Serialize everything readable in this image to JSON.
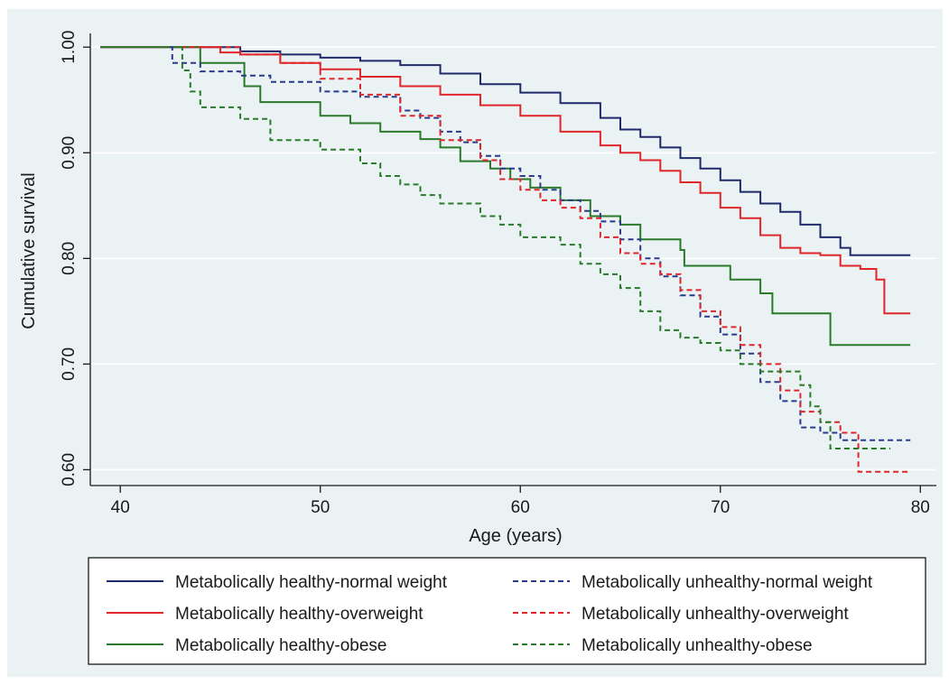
{
  "chart_data": {
    "type": "line",
    "title": "",
    "xlabel": "Age (years)",
    "ylabel": "Cumulative survival",
    "xlim": [
      38.5,
      80.8
    ],
    "ylim": [
      0.585,
      1.013
    ],
    "x_ticks": [
      40,
      50,
      60,
      70,
      80
    ],
    "x_tick_labels": [
      "40",
      "50",
      "60",
      "70",
      "80"
    ],
    "y_ticks": [
      0.6,
      0.7,
      0.8,
      0.9,
      1.0
    ],
    "y_tick_labels": [
      "0.60",
      "0.70",
      "0.80",
      "0.90",
      "1.00"
    ],
    "grid": "horizontal",
    "legend_position": "bottom",
    "step": true,
    "series": [
      {
        "name": "Metabolically healthy-normal weight",
        "color": "#1f2a6b",
        "dash": "solid",
        "points": [
          [
            39,
            1.0
          ],
          [
            44,
            1.0
          ],
          [
            46,
            0.996
          ],
          [
            48,
            0.993
          ],
          [
            50,
            0.99
          ],
          [
            52,
            0.987
          ],
          [
            54,
            0.983
          ],
          [
            56,
            0.975
          ],
          [
            58,
            0.965
          ],
          [
            60,
            0.957
          ],
          [
            62,
            0.947
          ],
          [
            64,
            0.933
          ],
          [
            65,
            0.922
          ],
          [
            66,
            0.915
          ],
          [
            67,
            0.905
          ],
          [
            68,
            0.895
          ],
          [
            69,
            0.885
          ],
          [
            70,
            0.874
          ],
          [
            71,
            0.863
          ],
          [
            72,
            0.852
          ],
          [
            73,
            0.844
          ],
          [
            74,
            0.832
          ],
          [
            75,
            0.82
          ],
          [
            76,
            0.81
          ],
          [
            76.5,
            0.803
          ],
          [
            79.5,
            0.803
          ]
        ]
      },
      {
        "name": "Metabolically healthy-overweight",
        "color": "#e0262b",
        "dash": "solid",
        "points": [
          [
            39,
            1.0
          ],
          [
            44,
            1.0
          ],
          [
            45,
            0.995
          ],
          [
            46,
            0.993
          ],
          [
            48,
            0.985
          ],
          [
            50,
            0.979
          ],
          [
            52,
            0.972
          ],
          [
            54,
            0.963
          ],
          [
            56,
            0.955
          ],
          [
            58,
            0.945
          ],
          [
            60,
            0.935
          ],
          [
            62,
            0.92
          ],
          [
            64,
            0.907
          ],
          [
            65,
            0.9
          ],
          [
            66,
            0.893
          ],
          [
            67,
            0.883
          ],
          [
            68,
            0.872
          ],
          [
            69,
            0.862
          ],
          [
            70,
            0.848
          ],
          [
            71,
            0.838
          ],
          [
            72,
            0.822
          ],
          [
            73,
            0.81
          ],
          [
            74,
            0.805
          ],
          [
            75,
            0.803
          ],
          [
            76,
            0.793
          ],
          [
            77,
            0.79
          ],
          [
            77.8,
            0.78
          ],
          [
            78.2,
            0.748
          ],
          [
            79.5,
            0.748
          ]
        ]
      },
      {
        "name": "Metabolically healthy-obese",
        "color": "#2b7a2b",
        "dash": "solid",
        "points": [
          [
            39,
            1.0
          ],
          [
            43.9,
            1.0
          ],
          [
            44,
            0.985
          ],
          [
            46.2,
            0.963
          ],
          [
            47,
            0.948
          ],
          [
            50,
            0.935
          ],
          [
            51.5,
            0.928
          ],
          [
            53,
            0.92
          ],
          [
            55,
            0.913
          ],
          [
            56,
            0.905
          ],
          [
            57,
            0.892
          ],
          [
            58.5,
            0.885
          ],
          [
            59.5,
            0.875
          ],
          [
            60.5,
            0.867
          ],
          [
            62,
            0.855
          ],
          [
            63.5,
            0.84
          ],
          [
            65,
            0.832
          ],
          [
            66,
            0.818
          ],
          [
            68,
            0.808
          ],
          [
            68.2,
            0.793
          ],
          [
            70.5,
            0.78
          ],
          [
            72,
            0.767
          ],
          [
            72.6,
            0.748
          ],
          [
            75.5,
            0.718
          ],
          [
            79.5,
            0.718
          ]
        ]
      },
      {
        "name": "Metabolically unhealthy-normal weight",
        "color": "#2a3a8c",
        "dash": "dashed",
        "points": [
          [
            42.5,
            1.0
          ],
          [
            42.6,
            0.985
          ],
          [
            44,
            0.977
          ],
          [
            46,
            0.973
          ],
          [
            47.5,
            0.967
          ],
          [
            50,
            0.958
          ],
          [
            52,
            0.953
          ],
          [
            54,
            0.94
          ],
          [
            55,
            0.933
          ],
          [
            56,
            0.92
          ],
          [
            57,
            0.91
          ],
          [
            58,
            0.897
          ],
          [
            59,
            0.885
          ],
          [
            60,
            0.878
          ],
          [
            61,
            0.865
          ],
          [
            62,
            0.855
          ],
          [
            63,
            0.845
          ],
          [
            64,
            0.835
          ],
          [
            65,
            0.818
          ],
          [
            66,
            0.8
          ],
          [
            67,
            0.783
          ],
          [
            68,
            0.765
          ],
          [
            69,
            0.745
          ],
          [
            70,
            0.728
          ],
          [
            71,
            0.71
          ],
          [
            72,
            0.683
          ],
          [
            73,
            0.665
          ],
          [
            74,
            0.64
          ],
          [
            75,
            0.635
          ],
          [
            76,
            0.628
          ],
          [
            79.5,
            0.628
          ]
        ]
      },
      {
        "name": "Metabolically unhealthy-overweight",
        "color": "#e0262b",
        "dash": "dashed",
        "points": [
          [
            43,
            1.0
          ],
          [
            45,
            1.0
          ],
          [
            46,
            0.993
          ],
          [
            48,
            0.985
          ],
          [
            50,
            0.97
          ],
          [
            52,
            0.955
          ],
          [
            54,
            0.935
          ],
          [
            56,
            0.912
          ],
          [
            58,
            0.893
          ],
          [
            59,
            0.875
          ],
          [
            60,
            0.865
          ],
          [
            61,
            0.855
          ],
          [
            62,
            0.848
          ],
          [
            63,
            0.838
          ],
          [
            64,
            0.82
          ],
          [
            65,
            0.805
          ],
          [
            66,
            0.795
          ],
          [
            67,
            0.785
          ],
          [
            68,
            0.77
          ],
          [
            69,
            0.75
          ],
          [
            70,
            0.735
          ],
          [
            71,
            0.718
          ],
          [
            72,
            0.7
          ],
          [
            73,
            0.675
          ],
          [
            74,
            0.655
          ],
          [
            75,
            0.645
          ],
          [
            76,
            0.635
          ],
          [
            76.9,
            0.598
          ],
          [
            79.5,
            0.598
          ]
        ]
      },
      {
        "name": "Metabolically unhealthy-obese",
        "color": "#2b7a2b",
        "dash": "dashed",
        "points": [
          [
            43,
            1.0
          ],
          [
            43.1,
            0.978
          ],
          [
            43.5,
            0.958
          ],
          [
            44,
            0.943
          ],
          [
            46,
            0.932
          ],
          [
            47.5,
            0.912
          ],
          [
            50,
            0.903
          ],
          [
            52,
            0.89
          ],
          [
            53,
            0.878
          ],
          [
            54,
            0.87
          ],
          [
            55,
            0.86
          ],
          [
            56,
            0.852
          ],
          [
            58,
            0.84
          ],
          [
            59,
            0.832
          ],
          [
            60,
            0.82
          ],
          [
            62,
            0.813
          ],
          [
            63,
            0.795
          ],
          [
            64,
            0.785
          ],
          [
            65,
            0.772
          ],
          [
            66,
            0.75
          ],
          [
            67,
            0.732
          ],
          [
            68,
            0.725
          ],
          [
            69,
            0.72
          ],
          [
            70,
            0.713
          ],
          [
            71,
            0.7
          ],
          [
            72,
            0.693
          ],
          [
            74,
            0.68
          ],
          [
            74.5,
            0.66
          ],
          [
            75,
            0.645
          ],
          [
            75.5,
            0.62
          ],
          [
            78.5,
            0.62
          ]
        ]
      }
    ]
  }
}
